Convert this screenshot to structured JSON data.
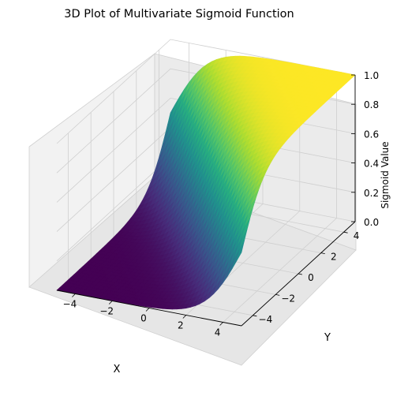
{
  "chart_data": {
    "type": "surface3d",
    "function": "sigmoid",
    "title": "3D Plot of Multivariate Sigmoid Function",
    "xlabel": "X",
    "ylabel": "Y",
    "zlabel": "Sigmoid Value",
    "xlim": [
      -5,
      5
    ],
    "ylim": [
      -5,
      5
    ],
    "zlim": [
      0,
      1
    ],
    "xticks": [
      "−4",
      "−2",
      "0",
      "2",
      "4"
    ],
    "yticks": [
      "−4",
      "−2",
      "0",
      "2",
      "4"
    ],
    "zticks": [
      "0.0",
      "0.2",
      "0.4",
      "0.6",
      "0.8",
      "1.0"
    ],
    "colormap": "viridis",
    "grid": true
  }
}
